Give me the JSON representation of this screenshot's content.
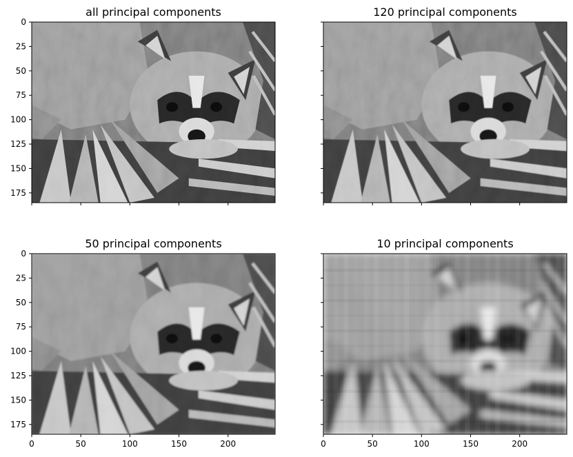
{
  "chart_data": [
    {
      "type": "image",
      "title": "all principal components",
      "components": "all",
      "colormap": "gray",
      "xlim": [
        0,
        248
      ],
      "ylim": [
        185,
        0
      ],
      "xticks": [
        0,
        50,
        100,
        150,
        200
      ],
      "yticks": [
        0,
        25,
        50,
        75,
        100,
        125,
        150,
        175
      ],
      "show_x_tick_labels": false,
      "show_y_tick_labels": true
    },
    {
      "type": "image",
      "title": "120 principal components",
      "components": 120,
      "colormap": "gray",
      "xlim": [
        0,
        248
      ],
      "ylim": [
        185,
        0
      ],
      "xticks": [
        0,
        50,
        100,
        150,
        200
      ],
      "yticks": [
        0,
        25,
        50,
        75,
        100,
        125,
        150,
        175
      ],
      "show_x_tick_labels": false,
      "show_y_tick_labels": false
    },
    {
      "type": "image",
      "title": "50 principal components",
      "components": 50,
      "colormap": "gray",
      "xlim": [
        0,
        248
      ],
      "ylim": [
        185,
        0
      ],
      "xticks": [
        0,
        50,
        100,
        150,
        200
      ],
      "yticks": [
        0,
        25,
        50,
        75,
        100,
        125,
        150,
        175
      ],
      "show_x_tick_labels": true,
      "show_y_tick_labels": true
    },
    {
      "type": "image",
      "title": "10 principal components",
      "components": 10,
      "colormap": "gray",
      "xlim": [
        0,
        248
      ],
      "ylim": [
        185,
        0
      ],
      "xticks": [
        0,
        50,
        100,
        150,
        200
      ],
      "yticks": [
        0,
        25,
        50,
        75,
        100,
        125,
        150,
        175
      ],
      "show_x_tick_labels": true,
      "show_y_tick_labels": false
    }
  ]
}
